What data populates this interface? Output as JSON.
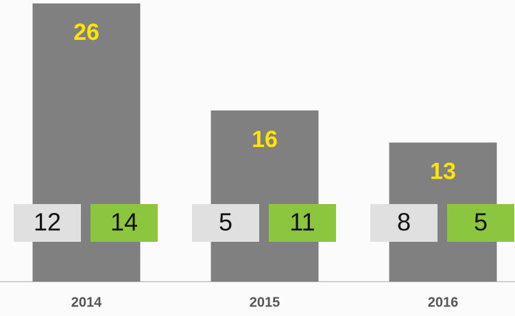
{
  "chart_data": {
    "type": "bar",
    "categories": [
      "2014",
      "2015",
      "2016"
    ],
    "values": [
      26,
      16,
      13
    ],
    "color": "#808080",
    "series": [
      {
        "color": "#e0e0e0",
        "values": [
          12,
          5,
          8
        ]
      },
      {
        "color": "#8cc63f",
        "values": [
          14,
          11,
          5
        ]
      }
    ]
  }
}
